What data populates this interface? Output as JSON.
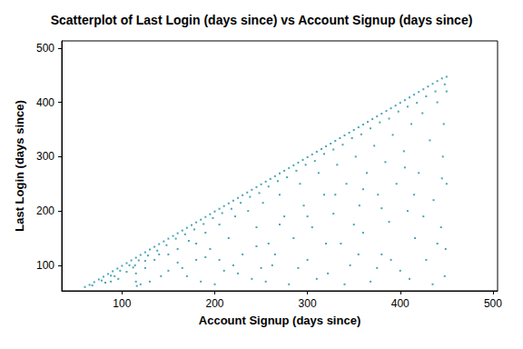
{
  "chart_data": {
    "type": "scatter",
    "title": "Scatterplot of Last Login (days since) vs Account Signup (days since)",
    "x_label": "Account Signup (days since)",
    "y_label": "Last Login (days since)",
    "xlim": [
      35,
      505
    ],
    "ylim": [
      53,
      513
    ],
    "xticks": [
      100,
      200,
      300,
      400,
      500
    ],
    "yticks": [
      100,
      200,
      300,
      400,
      500
    ],
    "grid": false,
    "color": "#1a8fa3",
    "marker": "square",
    "x": [
      60,
      65,
      70,
      75,
      80,
      85,
      90,
      95,
      100,
      105,
      110,
      115,
      120,
      125,
      130,
      135,
      140,
      145,
      150,
      155,
      160,
      165,
      170,
      175,
      180,
      185,
      190,
      195,
      200,
      205,
      210,
      215,
      220,
      225,
      230,
      235,
      240,
      245,
      250,
      255,
      260,
      265,
      270,
      275,
      280,
      285,
      290,
      295,
      300,
      305,
      310,
      315,
      320,
      325,
      330,
      335,
      340,
      345,
      350,
      355,
      360,
      365,
      370,
      375,
      380,
      385,
      390,
      395,
      400,
      405,
      410,
      415,
      420,
      425,
      430,
      435,
      440,
      445,
      450,
      68,
      78,
      88,
      98,
      108,
      118,
      128,
      138,
      148,
      158,
      168,
      178,
      188,
      198,
      208,
      218,
      228,
      238,
      248,
      258,
      268,
      278,
      288,
      298,
      308,
      318,
      328,
      338,
      348,
      358,
      368,
      378,
      388,
      398,
      408,
      418,
      428,
      438,
      448,
      82,
      96,
      112,
      115,
      115,
      114,
      116,
      125,
      135,
      142,
      150,
      160,
      165,
      172,
      180,
      185,
      190,
      195,
      205,
      210,
      215,
      222,
      230,
      236,
      240,
      245,
      252,
      258,
      262,
      270,
      275,
      280,
      285,
      292,
      296,
      300,
      305,
      312,
      318,
      322,
      328,
      332,
      336,
      342,
      346,
      352,
      356,
      360,
      364,
      368,
      372,
      376,
      380,
      384,
      388,
      392,
      396,
      400,
      404,
      408,
      412,
      416,
      420,
      424,
      428,
      432,
      436,
      440,
      444,
      446,
      448,
      450,
      450,
      449,
      447,
      130,
      170,
      200,
      225,
      255,
      290,
      310,
      340,
      375,
      410,
      435,
      390,
      355,
      265,
      320,
      440,
      425,
      300,
      250,
      205,
      150,
      180,
      350,
      380,
      415,
      445,
      405,
      360,
      330,
      270,
      245,
      220,
      190,
      160,
      140,
      125,
      105,
      92,
      88,
      120
    ],
    "values": [
      60,
      64,
      69,
      74,
      79,
      84,
      89,
      94,
      99,
      104,
      109,
      114,
      119,
      124,
      129,
      134,
      139,
      144,
      149,
      154,
      159,
      164,
      169,
      174,
      179,
      184,
      189,
      194,
      199,
      204,
      209,
      214,
      219,
      224,
      229,
      234,
      239,
      244,
      249,
      254,
      259,
      264,
      269,
      274,
      279,
      284,
      289,
      294,
      299,
      304,
      309,
      314,
      319,
      324,
      329,
      334,
      339,
      344,
      349,
      354,
      359,
      364,
      369,
      374,
      379,
      384,
      389,
      394,
      399,
      404,
      409,
      414,
      419,
      424,
      429,
      434,
      439,
      444,
      447,
      63,
      72,
      81,
      90,
      100,
      109,
      118,
      127,
      137,
      149,
      157,
      166,
      176,
      187,
      196,
      204,
      215,
      226,
      233,
      245,
      255,
      262,
      274,
      285,
      292,
      305,
      313,
      322,
      334,
      341,
      352,
      363,
      370,
      383,
      392,
      399,
      411,
      420,
      433,
      68,
      75,
      96,
      70,
      85,
      100,
      62,
      95,
      110,
      80,
      120,
      130,
      95,
      145,
      110,
      70,
      160,
      130,
      175,
      90,
      150,
      190,
      120,
      200,
      75,
      170,
      215,
      140,
      100,
      230,
      190,
      65,
      150,
      250,
      210,
      110,
      170,
      270,
      230,
      85,
      195,
      285,
      140,
      250,
      100,
      300,
      210,
      160,
      270,
      70,
      320,
      230,
      120,
      290,
      180,
      340,
      250,
      90,
      310,
      200,
      360,
      150,
      270,
      380,
      110,
      330,
      220,
      400,
      170,
      300,
      80,
      420,
      250,
      130,
      360,
      70,
      80,
      65,
      85,
      70,
      95,
      75,
      65,
      95,
      75,
      65,
      110,
      120,
      120,
      140,
      140,
      190,
      190,
      95,
      110,
      90,
      140,
      175,
      205,
      230,
      260,
      280,
      240,
      230,
      175,
      135,
      100,
      115,
      105,
      120,
      108,
      88,
      80,
      70,
      65
    ]
  }
}
